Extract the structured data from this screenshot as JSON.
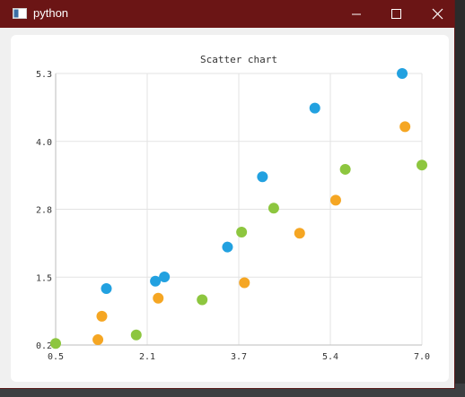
{
  "window": {
    "title": "python",
    "title_bar_color": "#6b1515"
  },
  "controls": {
    "minimize": "minimize-icon",
    "maximize": "maximize-icon",
    "close": "close-icon"
  },
  "chart_data": {
    "type": "scatter",
    "title": "Scatter chart",
    "xlim": [
      0.5,
      7.0
    ],
    "ylim": [
      0.2,
      5.3
    ],
    "x_ticks": [
      "0.5",
      "2.1",
      "3.7",
      "5.4",
      "7.0"
    ],
    "y_ticks": [
      "0.2",
      "1.5",
      "2.8",
      "4.0",
      "5.3"
    ],
    "grid": true,
    "series": [
      {
        "color": "#22a1e0",
        "points": [
          [
            1.4,
            1.26
          ],
          [
            2.27,
            1.4
          ],
          [
            2.43,
            1.48
          ],
          [
            3.55,
            2.04
          ],
          [
            4.17,
            3.36
          ],
          [
            5.1,
            4.65
          ],
          [
            6.65,
            5.3
          ]
        ]
      },
      {
        "color": "#f5a623",
        "points": [
          [
            1.25,
            0.3
          ],
          [
            1.32,
            0.74
          ],
          [
            2.32,
            1.08
          ],
          [
            3.85,
            1.37
          ],
          [
            4.83,
            2.3
          ],
          [
            5.47,
            2.92
          ],
          [
            6.7,
            4.3
          ]
        ]
      },
      {
        "color": "#8dc63f",
        "points": [
          [
            0.5,
            0.23
          ],
          [
            1.93,
            0.39
          ],
          [
            3.1,
            1.05
          ],
          [
            3.8,
            2.32
          ],
          [
            4.37,
            2.77
          ],
          [
            5.64,
            3.5
          ],
          [
            7.0,
            3.58
          ]
        ]
      }
    ]
  }
}
